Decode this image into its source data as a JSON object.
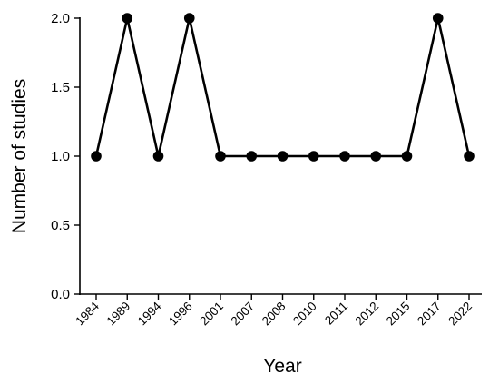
{
  "chart_data": {
    "type": "line",
    "title": "",
    "xlabel": "Year",
    "ylabel": "Number of studies",
    "categories": [
      "1984",
      "1989",
      "1994",
      "1996",
      "2001",
      "2007",
      "2008",
      "2010",
      "2011",
      "2012",
      "2015",
      "2017",
      "2022"
    ],
    "series": [
      {
        "values": [
          1,
          2,
          1,
          2,
          1,
          1,
          1,
          1,
          1,
          1,
          1,
          2,
          1
        ]
      }
    ],
    "ylim": [
      0,
      2
    ],
    "yticks": [
      0,
      0.5,
      1,
      1.5,
      2
    ],
    "ytick_labels": [
      "0.0",
      "0.5",
      "1.0",
      "1.5",
      "2.0"
    ],
    "grid": false,
    "line_color": "#000000",
    "marker_color": "#000000"
  }
}
